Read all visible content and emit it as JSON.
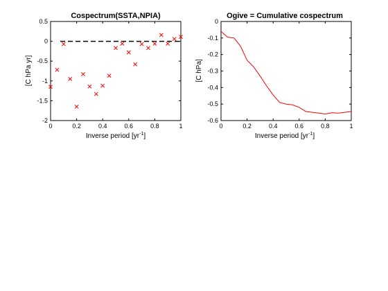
{
  "chart_data": [
    {
      "type": "scatter",
      "title": "Cospectrum(SSTA,NPIA)",
      "xlabel": "Inverse period [yr",
      "xlabel_sup": "-1",
      "xlabel_end": "]",
      "ylabel": "[C hPa yr]",
      "xlim": [
        0,
        1
      ],
      "ylim": [
        -2,
        0.5
      ],
      "xticks": [
        0,
        0.2,
        0.4,
        0.6,
        0.8,
        1
      ],
      "xtick_labels": [
        "0",
        "0.2",
        "0.4",
        "0.6",
        "0.8",
        "1"
      ],
      "yticks": [
        -2,
        -1.5,
        -1,
        -0.5,
        0,
        0.5
      ],
      "ytick_labels": [
        "-2",
        "-1.5",
        "-1",
        "-0.5",
        "0",
        "0.5"
      ],
      "marker": "x",
      "marker_color": "#ff0000",
      "reference_line": {
        "y": 0,
        "style": "dashed",
        "color": "#000000"
      },
      "grid": false,
      "x": [
        0.0,
        0.05,
        0.1,
        0.15,
        0.2,
        0.25,
        0.3,
        0.35,
        0.4,
        0.45,
        0.5,
        0.55,
        0.6,
        0.65,
        0.7,
        0.75,
        0.8,
        0.85,
        0.9,
        0.95,
        1.0
      ],
      "y": [
        -1.15,
        -0.72,
        -0.07,
        -0.95,
        -1.65,
        -0.83,
        -1.14,
        -1.33,
        -1.12,
        -0.87,
        -0.17,
        -0.06,
        -0.28,
        -0.58,
        -0.07,
        -0.17,
        -0.06,
        0.16,
        -0.06,
        0.06,
        0.11
      ]
    },
    {
      "type": "line",
      "title": "Ogive = Cumulative cospectrum",
      "xlabel": "Inverse period [yr",
      "xlabel_sup": "-1",
      "xlabel_end": "]",
      "ylabel": "[C hPa]",
      "xlim": [
        0,
        1
      ],
      "ylim": [
        -0.6,
        0
      ],
      "xticks": [
        0,
        0.2,
        0.4,
        0.6,
        0.8,
        1
      ],
      "xtick_labels": [
        "0",
        "0.2",
        "0.4",
        "0.6",
        "0.8",
        "1"
      ],
      "yticks": [
        -0.6,
        -0.5,
        -0.4,
        -0.3,
        -0.2,
        -0.1,
        0
      ],
      "ytick_labels": [
        "-0.6",
        "-0.5",
        "-0.4",
        "-0.3",
        "-0.2",
        "-0.1",
        "0"
      ],
      "line_color": "#ff0000",
      "grid": false,
      "x": [
        0.0,
        0.05,
        0.1,
        0.15,
        0.2,
        0.25,
        0.3,
        0.35,
        0.4,
        0.45,
        0.5,
        0.55,
        0.6,
        0.65,
        0.7,
        0.75,
        0.8,
        0.85,
        0.9,
        0.95,
        1.0
      ],
      "y": [
        -0.06,
        -0.095,
        -0.1,
        -0.15,
        -0.235,
        -0.275,
        -0.33,
        -0.39,
        -0.445,
        -0.49,
        -0.5,
        -0.505,
        -0.52,
        -0.545,
        -0.55,
        -0.555,
        -0.56,
        -0.553,
        -0.555,
        -0.55,
        -0.545
      ]
    }
  ]
}
